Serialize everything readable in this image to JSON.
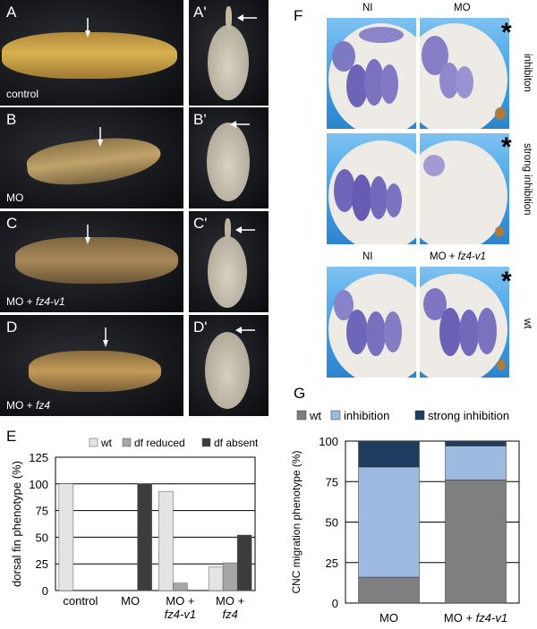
{
  "panels": {
    "A": "A",
    "A_prime": "A'",
    "B": "B",
    "B_prime": "B'",
    "C": "C",
    "C_prime": "C'",
    "D": "D",
    "D_prime": "D'",
    "E": "E",
    "F": "F",
    "G": "G"
  },
  "embryo_labels": {
    "control": "control",
    "mo": "MO",
    "mo_fz4v1_prefix": "MO + ",
    "mo_fz4v1_gene": "fz4-v1",
    "mo_fz4_prefix": "MO + ",
    "mo_fz4_gene": "fz4"
  },
  "panel_f": {
    "col_ni": "NI",
    "col_mo": "MO",
    "col_ni_2": "NI",
    "col_mo_fz4v1_prefix": "MO + ",
    "col_mo_fz4v1_gene": "fz4-v1",
    "row_inhibition": "inhibiton",
    "row_strong": "strong inhibition",
    "row_wt": "wt",
    "star": "*"
  },
  "chart_data": [
    {
      "panel": "E",
      "type": "bar",
      "ylabel": "dorsal fin phenotype (%)",
      "ylim": [
        0,
        125
      ],
      "yticks": [
        "0",
        "25",
        "50",
        "75",
        "100",
        "125"
      ],
      "categories": [
        "control",
        "MO",
        "MO + fz4-v1",
        "MO + fz4"
      ],
      "category_lines": [
        [
          "control"
        ],
        [
          "MO"
        ],
        [
          "MO +",
          "fz4-v1"
        ],
        [
          "MO +",
          "fz4"
        ]
      ],
      "series": [
        {
          "name": "wt",
          "color": "#e4e4e4",
          "values": [
            100,
            0,
            93,
            22
          ]
        },
        {
          "name": "df reduced",
          "color": "#a6a6a6",
          "values": [
            0,
            0,
            7,
            26
          ]
        },
        {
          "name": "df absent",
          "color": "#3c3c3c",
          "values": [
            0,
            100,
            0,
            52
          ]
        }
      ],
      "legend": "top",
      "grid": true
    },
    {
      "panel": "G",
      "type": "bar",
      "stacked": true,
      "ylabel": "CNC migration phenotype (%)",
      "ylim": [
        0,
        100
      ],
      "yticks": [
        "0",
        "25",
        "50",
        "75",
        "100"
      ],
      "categories": [
        "MO",
        "MO + fz4-v1"
      ],
      "series": [
        {
          "name": "wt",
          "color": "#7f7f7f",
          "values": [
            16,
            76
          ]
        },
        {
          "name": "inhibition",
          "color": "#9dbbe0",
          "values": [
            68,
            21
          ]
        },
        {
          "name": "strong inhibition",
          "color": "#1f3d5f",
          "values": [
            16,
            3
          ]
        }
      ],
      "legend": "top",
      "grid": true
    }
  ]
}
